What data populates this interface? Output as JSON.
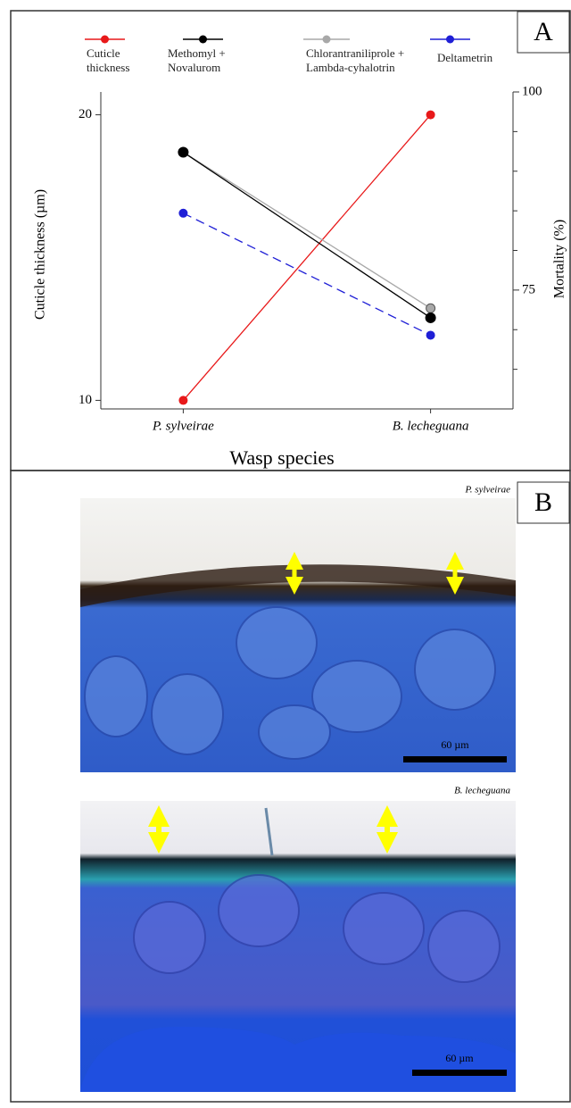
{
  "chart_data": {
    "type": "line",
    "categories": [
      "P. sylveirae",
      "B. lecheguana"
    ],
    "x_label": "Wasp species",
    "y_label": "Cuticle thickness (µm)",
    "y2_label": "Mortality (%)",
    "ylim": [
      9.7,
      20.8
    ],
    "yticks": [
      10,
      20
    ],
    "y2lim": [
      60,
      100
    ],
    "y2ticks": [
      75,
      100
    ],
    "y2minor_ticks": [
      65,
      70,
      80,
      85,
      90,
      95
    ],
    "series": [
      {
        "name": "Cuticle thickness",
        "color": "#e8191a",
        "dash": false,
        "values": [
          10,
          20
        ]
      },
      {
        "name": "Methomyl + Novalurom",
        "color": "#000000",
        "dash": false,
        "axis": "y2",
        "values": [
          92.4,
          71.5
        ]
      },
      {
        "name": "Chlorantraniliprole + Lambda-cyhalotrin",
        "color": "#a8a8a8",
        "dash": false,
        "axis": "y2",
        "values": [
          92.4,
          72.7
        ]
      },
      {
        "name": "Deltametrin",
        "color": "#1f1fd6",
        "dash": true,
        "axis": "y2",
        "values": [
          84.7,
          69.3
        ]
      }
    ]
  },
  "panels": {
    "a_label": "A",
    "b_label": "B",
    "micrographs": [
      {
        "caption": "P. sylveirae",
        "scale_bar": "60 µm"
      },
      {
        "caption": "B. lecheguana",
        "scale_bar": "60 µm"
      }
    ]
  }
}
